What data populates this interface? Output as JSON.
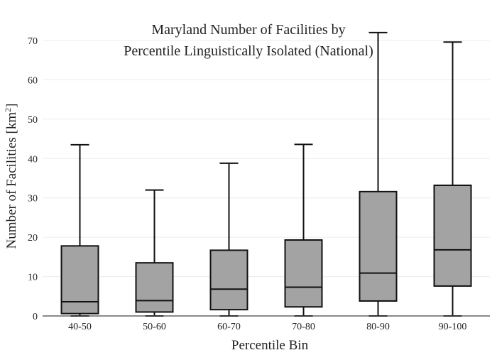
{
  "chart_data": {
    "type": "box",
    "title_lines": [
      "Maryland Number of Facilities by",
      "Percentile Linguistically Isolated (National)"
    ],
    "xlabel": "Percentile Bin",
    "ylabel_prefix": "Number of Facilities  [km",
    "ylabel_sup": "2",
    "ylabel_suffix": "]",
    "ylim": [
      0,
      72
    ],
    "yticks": [
      0,
      10,
      20,
      30,
      40,
      50,
      60,
      70
    ],
    "grid": true,
    "categories": [
      "40-50",
      "50-60",
      "60-70",
      "70-80",
      "80-90",
      "90-100"
    ],
    "boxes": [
      {
        "min": 0,
        "q1": 0.6,
        "median": 3.6,
        "q3": 17.8,
        "max": 43.5
      },
      {
        "min": 0,
        "q1": 1.0,
        "median": 3.9,
        "q3": 13.5,
        "max": 32.0
      },
      {
        "min": 0,
        "q1": 1.6,
        "median": 6.8,
        "q3": 16.7,
        "max": 38.8
      },
      {
        "min": 0,
        "q1": 2.3,
        "median": 7.3,
        "q3": 19.3,
        "max": 43.6
      },
      {
        "min": 0,
        "q1": 3.8,
        "median": 10.9,
        "q3": 31.6,
        "max": 72.0
      },
      {
        "min": 0,
        "q1": 7.6,
        "median": 16.8,
        "q3": 33.2,
        "max": 69.6
      }
    ],
    "colors": {
      "box_fill": "#a3a3a3",
      "stroke": "#111111",
      "grid": "#ececec",
      "axis": "#444444"
    }
  }
}
